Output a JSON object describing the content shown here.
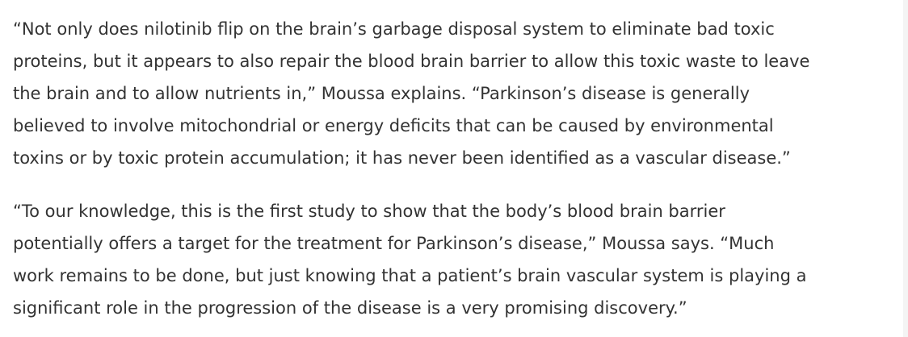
{
  "article": {
    "paragraphs": [
      "“Not only does nilotinib flip on the brain’s garbage disposal system to eliminate bad toxic\nproteins, but it appears to also repair the blood brain barrier to allow this toxic waste to leave\nthe brain and to allow nutrients in,” Moussa explains.  “Parkinson’s disease is generally\nbelieved to involve mitochondrial or energy deficits that can be caused by environmental\ntoxins or by toxic protein accumulation; it has never been identified as a vascular disease.”",
      "“To our knowledge, this is the first study to show that the body’s blood brain barrier\npotentially offers a target for the treatment for Parkinson’s disease,” Moussa says. “Much\nwork remains to be done, but just knowing that a patient’s brain vascular system is playing a\nsignificant role in the progression of the disease is a very promising discovery.”"
    ]
  },
  "colors": {
    "text": "#333333",
    "background": "#ffffff"
  }
}
